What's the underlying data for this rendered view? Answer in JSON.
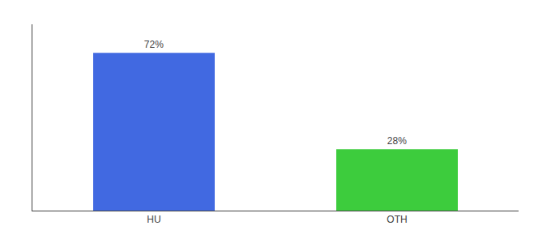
{
  "chart_data": {
    "type": "bar",
    "categories": [
      "HU",
      "OTH"
    ],
    "values": [
      72,
      28
    ],
    "value_labels": [
      "72%",
      "28%"
    ],
    "colors": [
      "#4169e1",
      "#3dcc3d"
    ],
    "data_labels": true,
    "ylim": [
      0,
      85
    ],
    "tick_labels": "x",
    "grid": false
  }
}
